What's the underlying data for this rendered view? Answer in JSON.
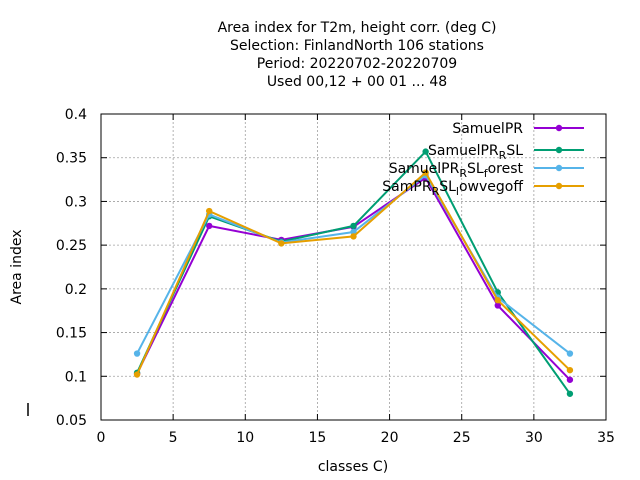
{
  "chart_data": {
    "type": "line",
    "title_lines": [
      "Area index  for T2m, height corr. (deg C)",
      "Selection: FinlandNorth    106 stations",
      "Period: 20220702-20220709",
      "Used  00,12  + 00 01 ... 48"
    ],
    "xlabel": "classes C)",
    "ylabel": "Area index",
    "xlim": [
      0,
      35
    ],
    "ylim": [
      0.05,
      0.4
    ],
    "xticks": [
      0,
      5,
      10,
      15,
      20,
      25,
      30,
      35
    ],
    "yticks": [
      0.05,
      0.1,
      0.15,
      0.2,
      0.25,
      0.3,
      0.35,
      0.4
    ],
    "ytick_labels": [
      "0.05",
      "0.1",
      "0.15",
      "0.2",
      "0.25",
      "0.3",
      "0.35",
      "0.4"
    ],
    "grid": true,
    "legend_position": "top-right",
    "x": [
      2.5,
      7.5,
      12.5,
      17.5,
      22.5,
      27.5,
      32.5
    ],
    "series": [
      {
        "name": "SamuelPR",
        "legend_parts": [
          [
            "SamuelPR",
            "n"
          ]
        ],
        "color": "#9400d3",
        "values": [
          0.103,
          0.272,
          0.256,
          0.271,
          0.327,
          0.181,
          0.096
        ]
      },
      {
        "name": "SamuelPR_RSL",
        "legend_parts": [
          [
            "SamuelPR",
            "n"
          ],
          [
            "R",
            "sub"
          ],
          [
            "SL",
            "n"
          ]
        ],
        "color": "#009e73",
        "values": [
          0.104,
          0.283,
          0.254,
          0.272,
          0.357,
          0.196,
          0.08
        ]
      },
      {
        "name": "SamuelPR_RSL_forest",
        "legend_parts": [
          [
            "SamuelPR",
            "n"
          ],
          [
            "R",
            "sub"
          ],
          [
            "SL",
            "n"
          ],
          [
            "f",
            "sub"
          ],
          [
            "orest",
            "n"
          ]
        ],
        "color": "#56b4e9",
        "values": [
          0.126,
          0.285,
          0.253,
          0.265,
          0.33,
          0.19,
          0.126
        ]
      },
      {
        "name": "SamPR_RSL_lowvegoff",
        "legend_parts": [
          [
            "SamPR",
            "n"
          ],
          [
            "R",
            "sub"
          ],
          [
            "SL",
            "n"
          ],
          [
            "l",
            "sub"
          ],
          [
            "owvegoff",
            "n"
          ]
        ],
        "color": "#e69f00",
        "values": [
          0.102,
          0.289,
          0.252,
          0.26,
          0.333,
          0.187,
          0.107
        ]
      }
    ]
  }
}
